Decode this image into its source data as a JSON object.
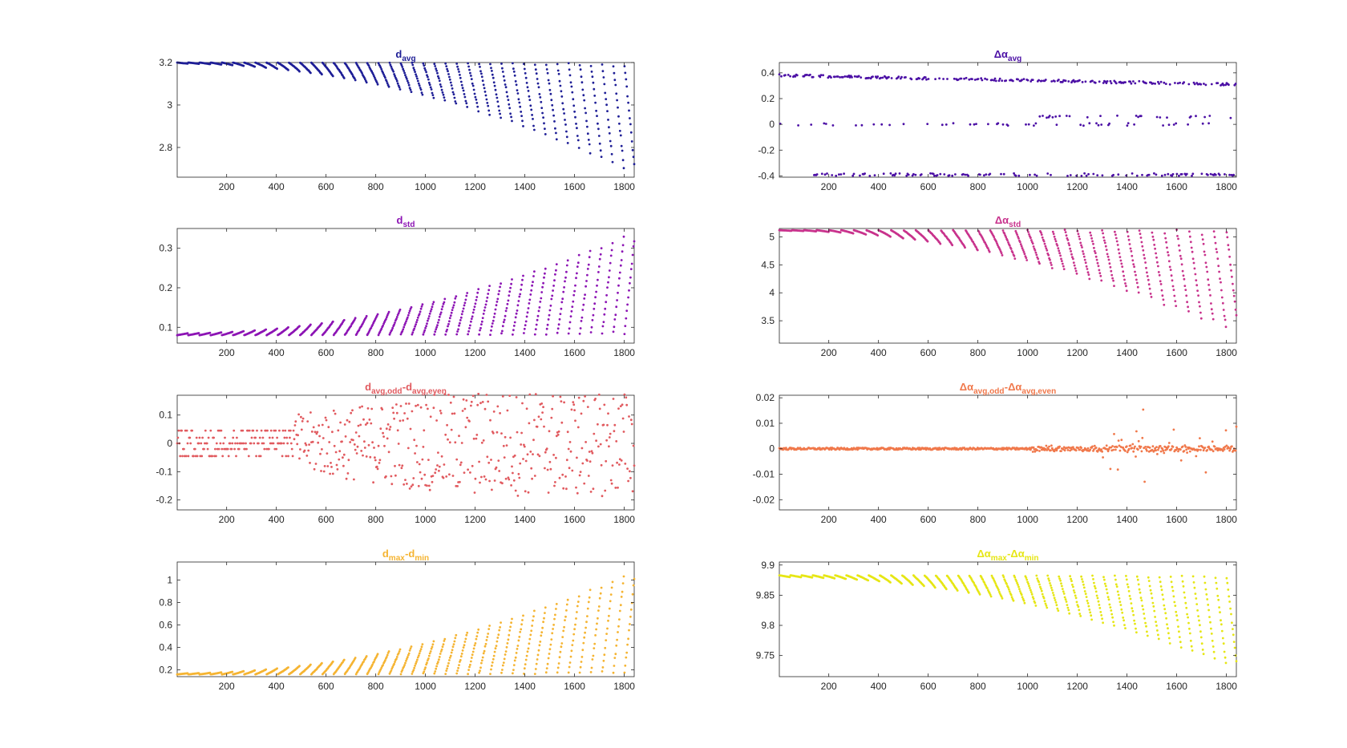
{
  "figure": {
    "chart_data": [
      {
        "type": "scatter",
        "title": "d",
        "title_sub": "avg",
        "xlim": [
          1,
          1840
        ],
        "ylim": [
          2.66,
          3.2
        ],
        "xticks": [
          200,
          400,
          600,
          800,
          1000,
          1200,
          1400,
          1600,
          1800
        ],
        "yticks": [
          2.8,
          3,
          3.2
        ],
        "color": "#1e1e96",
        "series": [
          {
            "pattern": "sawtooth_down",
            "base": 3.2,
            "drop_start": 0.005,
            "drop_end": 0.54,
            "period": 45
          }
        ]
      },
      {
        "type": "scatter",
        "title": "Δα",
        "title_sub": "avg",
        "xlim": [
          1,
          1840
        ],
        "ylim": [
          -0.41,
          0.48
        ],
        "xticks": [
          200,
          400,
          600,
          800,
          1000,
          1200,
          1400,
          1600,
          1800
        ],
        "yticks": [
          -0.4,
          -0.2,
          0,
          0.2,
          0.4
        ],
        "color": "#4b0fa5",
        "series": [
          {
            "pattern": "bands",
            "levels": [
              0.38,
              -0.39,
              0.0,
              0.06
            ],
            "trend": -0.07
          }
        ]
      },
      {
        "type": "scatter",
        "title": "d",
        "title_sub": "std",
        "xlim": [
          1,
          1840
        ],
        "ylim": [
          0.06,
          0.35
        ],
        "xticks": [
          200,
          400,
          600,
          800,
          1000,
          1200,
          1400,
          1600,
          1800
        ],
        "yticks": [
          0.1,
          0.2,
          0.3
        ],
        "color": "#8c14b4",
        "series": [
          {
            "pattern": "sawtooth_up",
            "base": 0.08,
            "rise_start": 0.005,
            "rise_end": 0.27,
            "period": 45
          }
        ]
      },
      {
        "type": "scatter",
        "title": "Δα",
        "title_sub": "std",
        "xlim": [
          1,
          1840
        ],
        "ylim": [
          3.1,
          5.15
        ],
        "xticks": [
          200,
          400,
          600,
          800,
          1000,
          1200,
          1400,
          1600,
          1800
        ],
        "yticks": [
          3.5,
          4,
          4.5,
          5
        ],
        "color": "#c8328c",
        "series": [
          {
            "pattern": "sawtooth_down",
            "base": 5.12,
            "drop_start": 0.01,
            "drop_end": 1.9,
            "period": 50
          }
        ]
      },
      {
        "type": "scatter",
        "title": "d",
        "title_sub": "avg,odd",
        "title_mid": "-d",
        "title_sub2": "avg,even",
        "xlim": [
          1,
          1840
        ],
        "ylim": [
          -0.235,
          0.17
        ],
        "xticks": [
          200,
          400,
          600,
          800,
          1000,
          1200,
          1400,
          1600,
          1800
        ],
        "yticks": [
          -0.2,
          -0.1,
          0,
          0.1
        ],
        "color": "#e15a5f",
        "series": [
          {
            "pattern": "noise",
            "bands": [
              0.045,
              0.02,
              0.0,
              -0.02,
              -0.045
            ],
            "spread_start": 0.05,
            "spread_end": 0.22
          }
        ]
      },
      {
        "type": "scatter",
        "title": "Δα",
        "title_sub": "avg,odd",
        "title_mid": "-Δα",
        "title_sub2": "avg,even",
        "xlim": [
          1,
          1840
        ],
        "ylim": [
          -0.024,
          0.021
        ],
        "xticks": [
          200,
          400,
          600,
          800,
          1000,
          1200,
          1400,
          1600,
          1800
        ],
        "yticks": [
          -0.02,
          -0.01,
          0,
          0.01,
          0.02
        ],
        "color": "#f0784b",
        "series": [
          {
            "pattern": "spiky",
            "base": 0.0,
            "onset": 1300,
            "amp": 0.02
          }
        ]
      },
      {
        "type": "scatter",
        "title": "d",
        "title_sub": "max",
        "title_mid": "-d",
        "title_sub2": "min",
        "xlim": [
          1,
          1840
        ],
        "ylim": [
          0.14,
          1.16
        ],
        "xticks": [
          200,
          400,
          600,
          800,
          1000,
          1200,
          1400,
          1600,
          1800
        ],
        "yticks": [
          0.2,
          0.4,
          0.6,
          0.8,
          1
        ],
        "color": "#f5b432",
        "series": [
          {
            "pattern": "sawtooth_up",
            "base": 0.16,
            "rise_start": 0.01,
            "rise_end": 0.95,
            "period": 45
          }
        ]
      },
      {
        "type": "scatter",
        "title": "Δα",
        "title_sub": "max",
        "title_mid": "-Δα",
        "title_sub2": "min",
        "xlim": [
          1,
          1840
        ],
        "ylim": [
          9.715,
          9.905
        ],
        "xticks": [
          200,
          400,
          600,
          800,
          1000,
          1200,
          1400,
          1600,
          1800
        ],
        "yticks": [
          9.75,
          9.8,
          9.85,
          9.9
        ],
        "color": "#e6e614",
        "series": [
          {
            "pattern": "sawtooth_down",
            "base": 9.883,
            "drop_start": 0.003,
            "drop_end": 0.16,
            "period": 45
          }
        ]
      }
    ]
  }
}
